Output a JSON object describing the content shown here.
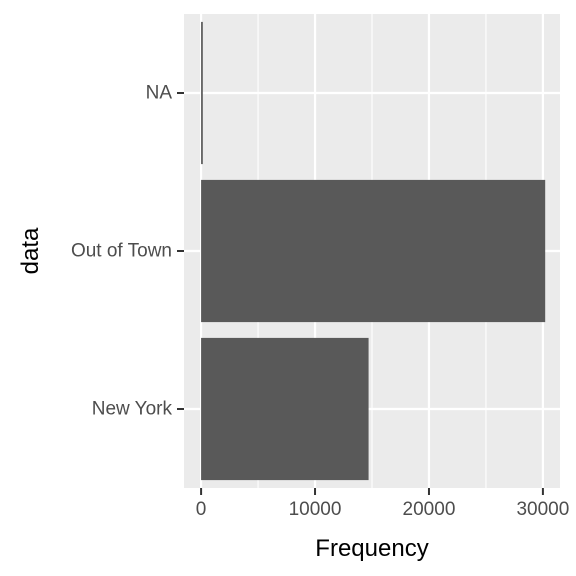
{
  "chart_data": {
    "type": "bar",
    "orientation": "horizontal",
    "xlabel": "Frequency",
    "ylabel": "data",
    "categories": [
      "New York",
      "Out of Town",
      "NA"
    ],
    "values": [
      14700,
      30200,
      150
    ],
    "xlim": [
      -1500,
      31500
    ],
    "x_ticks": [
      0,
      10000,
      20000,
      30000
    ],
    "x_tick_labels": [
      "0",
      "10000",
      "20000",
      "30000"
    ],
    "grid": true,
    "legend": "none",
    "colors": {
      "panel_background": "#ebebeb",
      "grid": "#ffffff",
      "bar": "#595959",
      "tick_mark": "#333333"
    }
  }
}
